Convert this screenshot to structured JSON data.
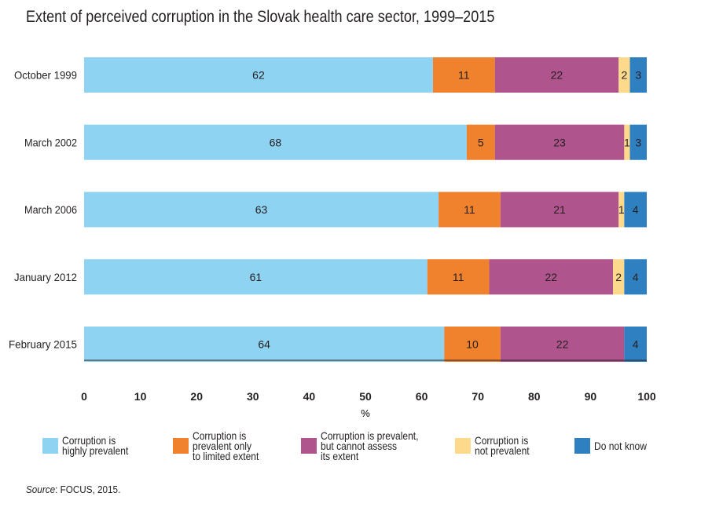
{
  "title": "Extent of perceived corruption in the Slovak health care sector, 1999–2015",
  "source": {
    "label": "Source",
    "text": ": FOCUS, 2015."
  },
  "chart_data": {
    "type": "bar",
    "orientation": "horizontal",
    "stacked": true,
    "title": "Extent of perceived corruption in the Slovak health care sector, 1999–2015",
    "xlabel": "%",
    "ylabel": "",
    "xlim": [
      0,
      100
    ],
    "xticks": [
      0,
      10,
      20,
      30,
      40,
      50,
      60,
      70,
      80,
      90,
      100
    ],
    "grid": false,
    "legend": "bottom",
    "categories": [
      "October 1999",
      "March 2002",
      "March 2006",
      "January 2012",
      "February 2015"
    ],
    "series": [
      {
        "name": "Corruption is highly prevalent",
        "legend_lines": [
          "Corruption is",
          "highly prevalent"
        ],
        "color": "#8fd3f2",
        "values": [
          62,
          68,
          63,
          61,
          64
        ]
      },
      {
        "name": "Corruption is prevalent only to limited extent",
        "legend_lines": [
          "Corruption is",
          "prevalent only",
          "to limited extent"
        ],
        "color": "#f0822e",
        "values": [
          11,
          5,
          11,
          11,
          10
        ]
      },
      {
        "name": "Corruption is prevalent, but cannot assess its extent",
        "legend_lines": [
          "Corruption is prevalent,",
          "but cannot assess",
          "its extent"
        ],
        "color": "#b0548e",
        "values": [
          22,
          23,
          21,
          22,
          22
        ]
      },
      {
        "name": "Corruption is not prevalent",
        "legend_lines": [
          "Corruption is",
          "not prevalent"
        ],
        "color": "#fdd98b",
        "values": [
          2,
          1,
          1,
          2,
          0
        ]
      },
      {
        "name": "Do not know",
        "legend_lines": [
          "Do not know"
        ],
        "color": "#2f80c1",
        "values": [
          3,
          3,
          4,
          4,
          4
        ]
      }
    ]
  }
}
